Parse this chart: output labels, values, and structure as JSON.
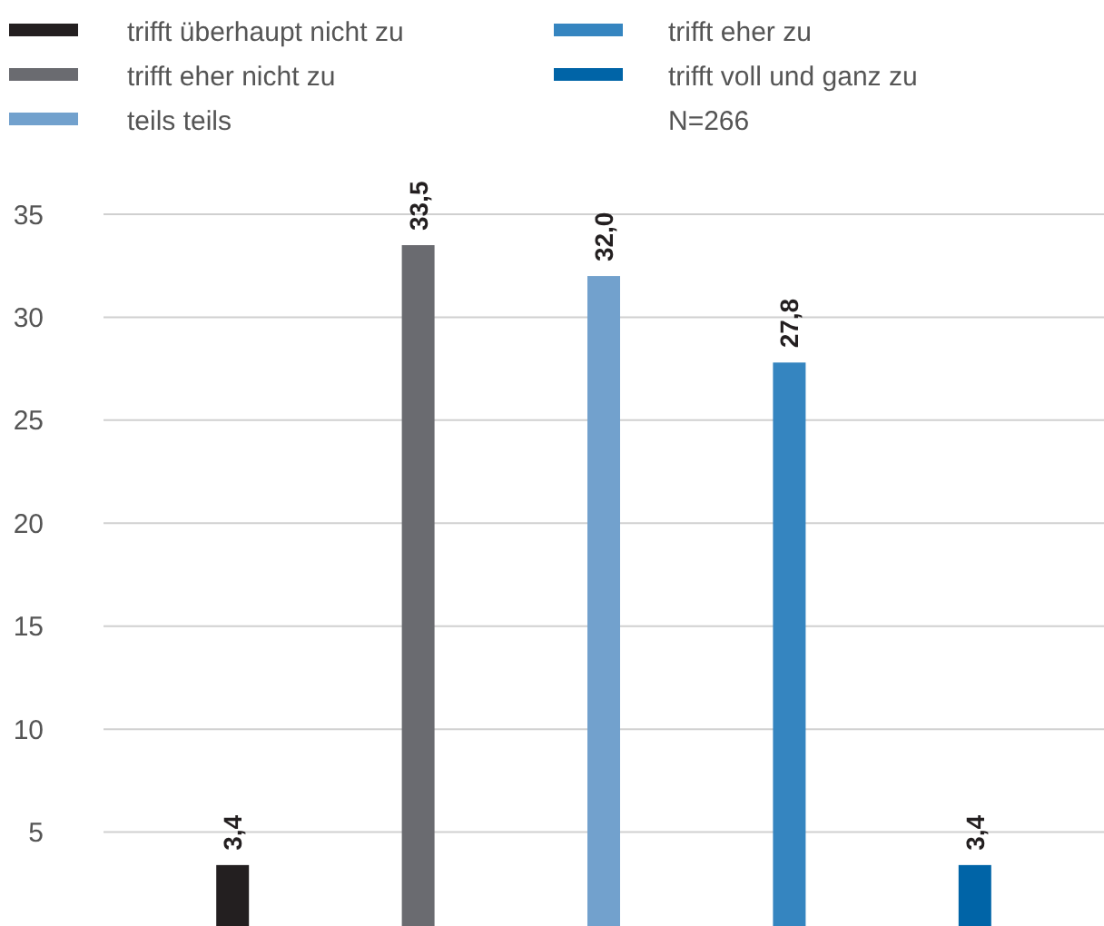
{
  "chart_data": {
    "type": "bar",
    "categories": [
      null
    ],
    "series": [
      {
        "name": "trifft überhaupt nicht zu",
        "color": "#231f20",
        "values": [
          3.4
        ],
        "value_labels": [
          "3,4"
        ]
      },
      {
        "name": "trifft eher nicht zu",
        "color": "#6a6b70",
        "values": [
          33.5
        ],
        "value_labels": [
          "33,5"
        ]
      },
      {
        "name": "teils teils",
        "color": "#72a1cd",
        "values": [
          32.0
        ],
        "value_labels": [
          "32,0"
        ]
      },
      {
        "name": "trifft eher zu",
        "color": "#3585c0",
        "values": [
          27.8
        ],
        "value_labels": [
          "27,8"
        ]
      },
      {
        "name": "trifft voll und ganz zu",
        "color": "#0064a7",
        "values": [
          3.4
        ],
        "value_labels": [
          "3,4"
        ]
      }
    ],
    "annotations": [
      "N=266"
    ],
    "ylim": [
      0,
      35
    ],
    "yticks": [
      5,
      10,
      15,
      20,
      25,
      30,
      35
    ],
    "grid": "y",
    "legend": "top"
  }
}
